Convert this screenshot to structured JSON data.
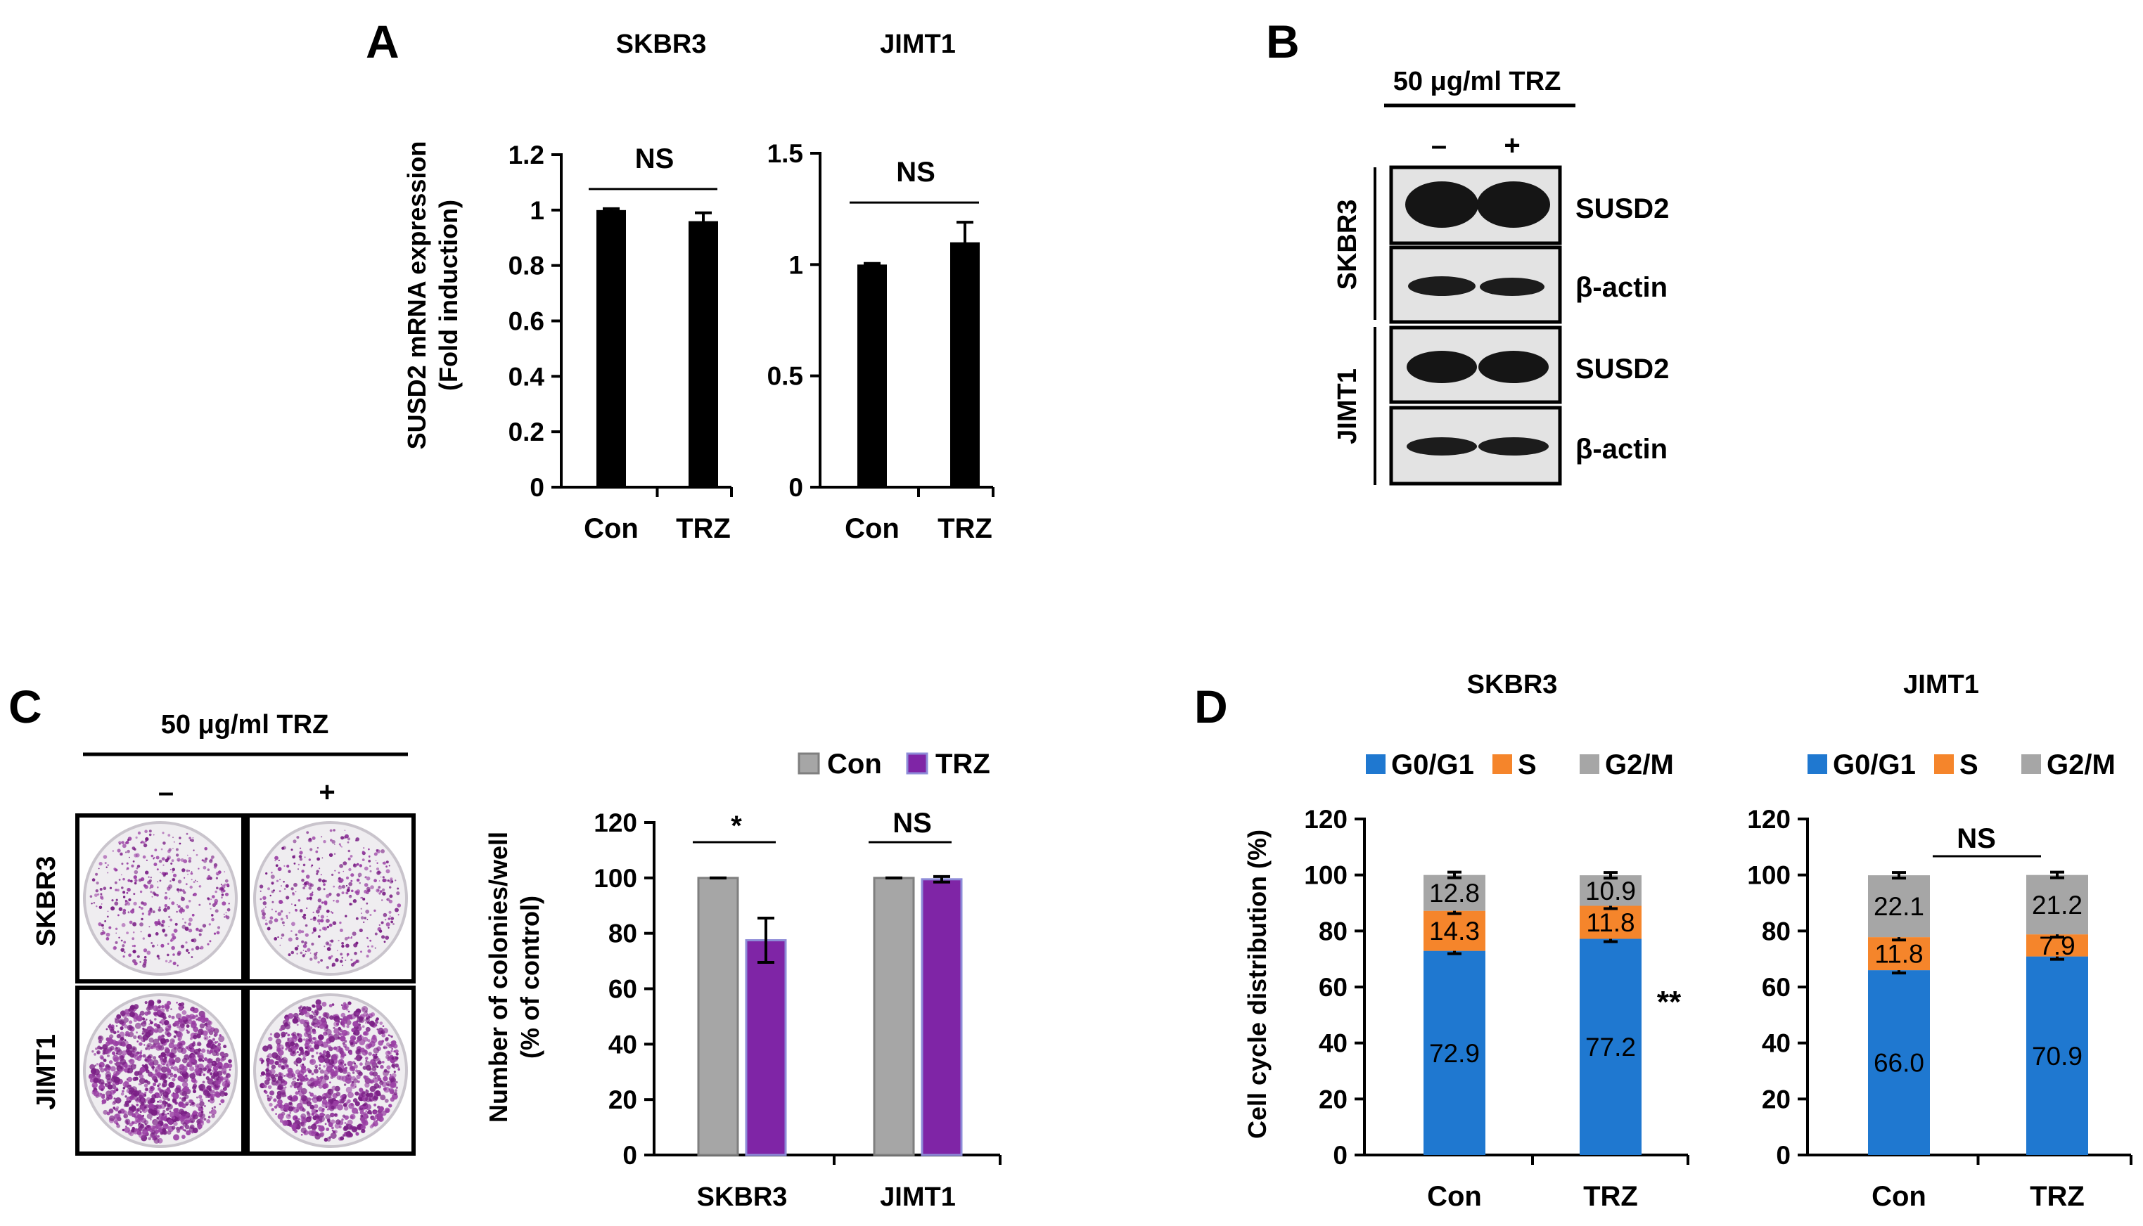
{
  "figure": {
    "panels": [
      "A",
      "B",
      "C",
      "D"
    ],
    "colors": {
      "black": "#000000",
      "gray": "#a6a6a6",
      "purple": "#7f25a6",
      "blue": "#1f78d0",
      "orange": "#f5852b",
      "plate_bg": "#efedf0",
      "colony": "#7a1f85",
      "blot_bg": "#e3e3e3",
      "band": "#151515"
    }
  },
  "panelB": {
    "treatment": "50 μg/ml TRZ",
    "lane_labels": [
      "–",
      "+"
    ],
    "cell_lines": [
      "SKBR3",
      "JIMT1"
    ],
    "blots": [
      {
        "cell_line": "SKBR3",
        "protein": "SUSD2"
      },
      {
        "cell_line": "SKBR3",
        "protein": "β-actin"
      },
      {
        "cell_line": "JIMT1",
        "protein": "SUSD2"
      },
      {
        "cell_line": "JIMT1",
        "protein": "β-actin"
      }
    ]
  },
  "panelC_plates": {
    "treatment": "50 μg/ml TRZ",
    "column_labels": [
      "–",
      "+"
    ],
    "row_labels": [
      "SKBR3",
      "JIMT1"
    ]
  },
  "chart_data": [
    {
      "id": "A-SKBR3",
      "type": "bar",
      "title": "SKBR3",
      "ylabel": "SUSD2 mRNA expression",
      "ylabel2": "(Fold induction)",
      "categories": [
        "Con",
        "TRZ"
      ],
      "values": [
        1.0,
        0.96
      ],
      "errors": [
        0.005,
        0.03
      ],
      "ylim": [
        0,
        1.2
      ],
      "yticks": [
        0,
        0.2,
        0.4,
        0.6,
        0.8,
        1,
        1.2
      ],
      "ytick_labels": [
        "0",
        "0.2",
        "0.4",
        "0.6",
        "0.8",
        "1",
        "1.2"
      ],
      "annotation": "NS"
    },
    {
      "id": "A-JIMT1",
      "type": "bar",
      "title": "JIMT1",
      "categories": [
        "Con",
        "TRZ"
      ],
      "values": [
        1.0,
        1.1
      ],
      "errors": [
        0.005,
        0.09
      ],
      "ylim": [
        0,
        1.5
      ],
      "yticks": [
        0,
        0.5,
        1,
        1.5
      ],
      "ytick_labels": [
        "0",
        "0.5",
        "1",
        "1.5"
      ],
      "annotation": "NS"
    },
    {
      "id": "C-colonies",
      "type": "bar",
      "ylabel": "Number of colonies/well",
      "ylabel2": "(% of  control)",
      "categories": [
        "SKBR3",
        "JIMT1"
      ],
      "series": [
        {
          "name": "Con",
          "values": [
            100,
            100
          ],
          "errors": [
            0,
            0
          ]
        },
        {
          "name": "TRZ",
          "values": [
            77.5,
            99.5
          ],
          "errors": [
            8,
            1
          ]
        }
      ],
      "ylim": [
        0,
        120
      ],
      "yticks": [
        0,
        20,
        40,
        60,
        80,
        100,
        120
      ],
      "annotations": [
        "*",
        "NS"
      ],
      "legend": "top-right"
    },
    {
      "id": "D-SKBR3",
      "type": "bar",
      "stacked": true,
      "title": "SKBR3",
      "ylabel": "Cell cycle distribution (%)",
      "categories": [
        "Con",
        "TRZ"
      ],
      "series": [
        {
          "name": "G0/G1",
          "values": [
            72.9,
            77.2
          ],
          "labels": [
            "72.9",
            "77.2"
          ]
        },
        {
          "name": "S",
          "values": [
            14.3,
            11.8
          ],
          "labels": [
            "14.3",
            "11.8"
          ]
        },
        {
          "name": "G2/M",
          "values": [
            12.8,
            10.9
          ],
          "labels": [
            "12.8",
            "10.9"
          ]
        }
      ],
      "ylim": [
        0,
        120
      ],
      "yticks": [
        0,
        20,
        40,
        60,
        80,
        100,
        120
      ],
      "annotation": "**",
      "legend": "top"
    },
    {
      "id": "D-JIMT1",
      "type": "bar",
      "stacked": true,
      "title": "JIMT1",
      "categories": [
        "Con",
        "TRZ"
      ],
      "series": [
        {
          "name": "G0/G1",
          "values": [
            66.0,
            70.9
          ],
          "labels": [
            "66.0",
            "70.9"
          ]
        },
        {
          "name": "S",
          "values": [
            11.8,
            7.9
          ],
          "labels": [
            "11.8",
            "7.9"
          ]
        },
        {
          "name": "G2/M",
          "values": [
            22.1,
            21.2
          ],
          "labels": [
            "22.1",
            "21.2"
          ]
        }
      ],
      "ylim": [
        0,
        120
      ],
      "yticks": [
        0,
        20,
        40,
        60,
        80,
        100,
        120
      ],
      "annotation": "NS",
      "legend": "top"
    }
  ]
}
